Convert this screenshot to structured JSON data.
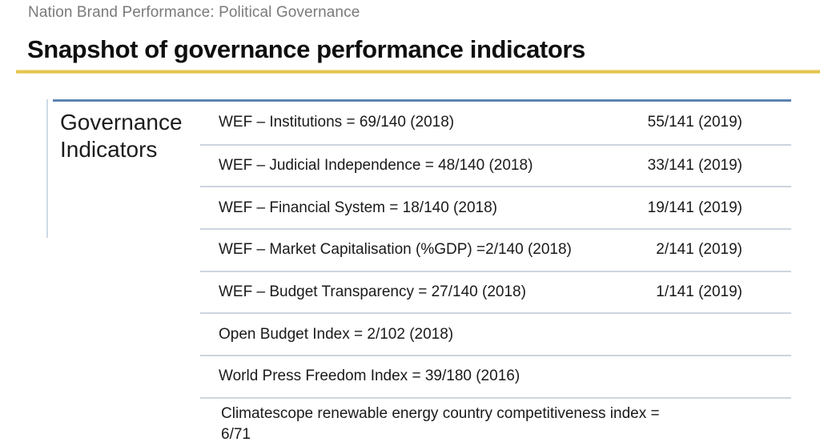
{
  "page": {
    "eyebrow": "Nation Brand Performance: Political Governance",
    "title": "Snapshot of governance performance indicators"
  },
  "table": {
    "row_header": "Governance Indicators",
    "rows": [
      {
        "indicator": "WEF – Institutions = 69/140 (2018)",
        "update": "55/141 (2019)"
      },
      {
        "indicator": "WEF – Judicial Independence = 48/140 (2018)",
        "update": "33/141 (2019)"
      },
      {
        "indicator": "WEF – Financial System = 18/140 (2018)",
        "update": "19/141 (2019)"
      },
      {
        "indicator": "WEF – Market Capitalisation (%GDP) =2/140 (2018)",
        "update": "2/141 (2019)"
      },
      {
        "indicator": "WEF – Budget Transparency = 27/140 (2018)",
        "update": "1/141 (2019)"
      },
      {
        "indicator": "Open Budget Index = 2/102 (2018)",
        "update": ""
      },
      {
        "indicator": "World Press Freedom Index = 39/180 (2016)",
        "update": ""
      },
      {
        "indicator": "Climatescope renewable energy country competitiveness index = 6/71",
        "update": ""
      }
    ]
  },
  "colors": {
    "accent_gold": "#E3C44A",
    "table_top_border": "#5B84B0",
    "row_divider": "#CCD5DF",
    "eyebrow_gray": "#7A7A7A"
  }
}
